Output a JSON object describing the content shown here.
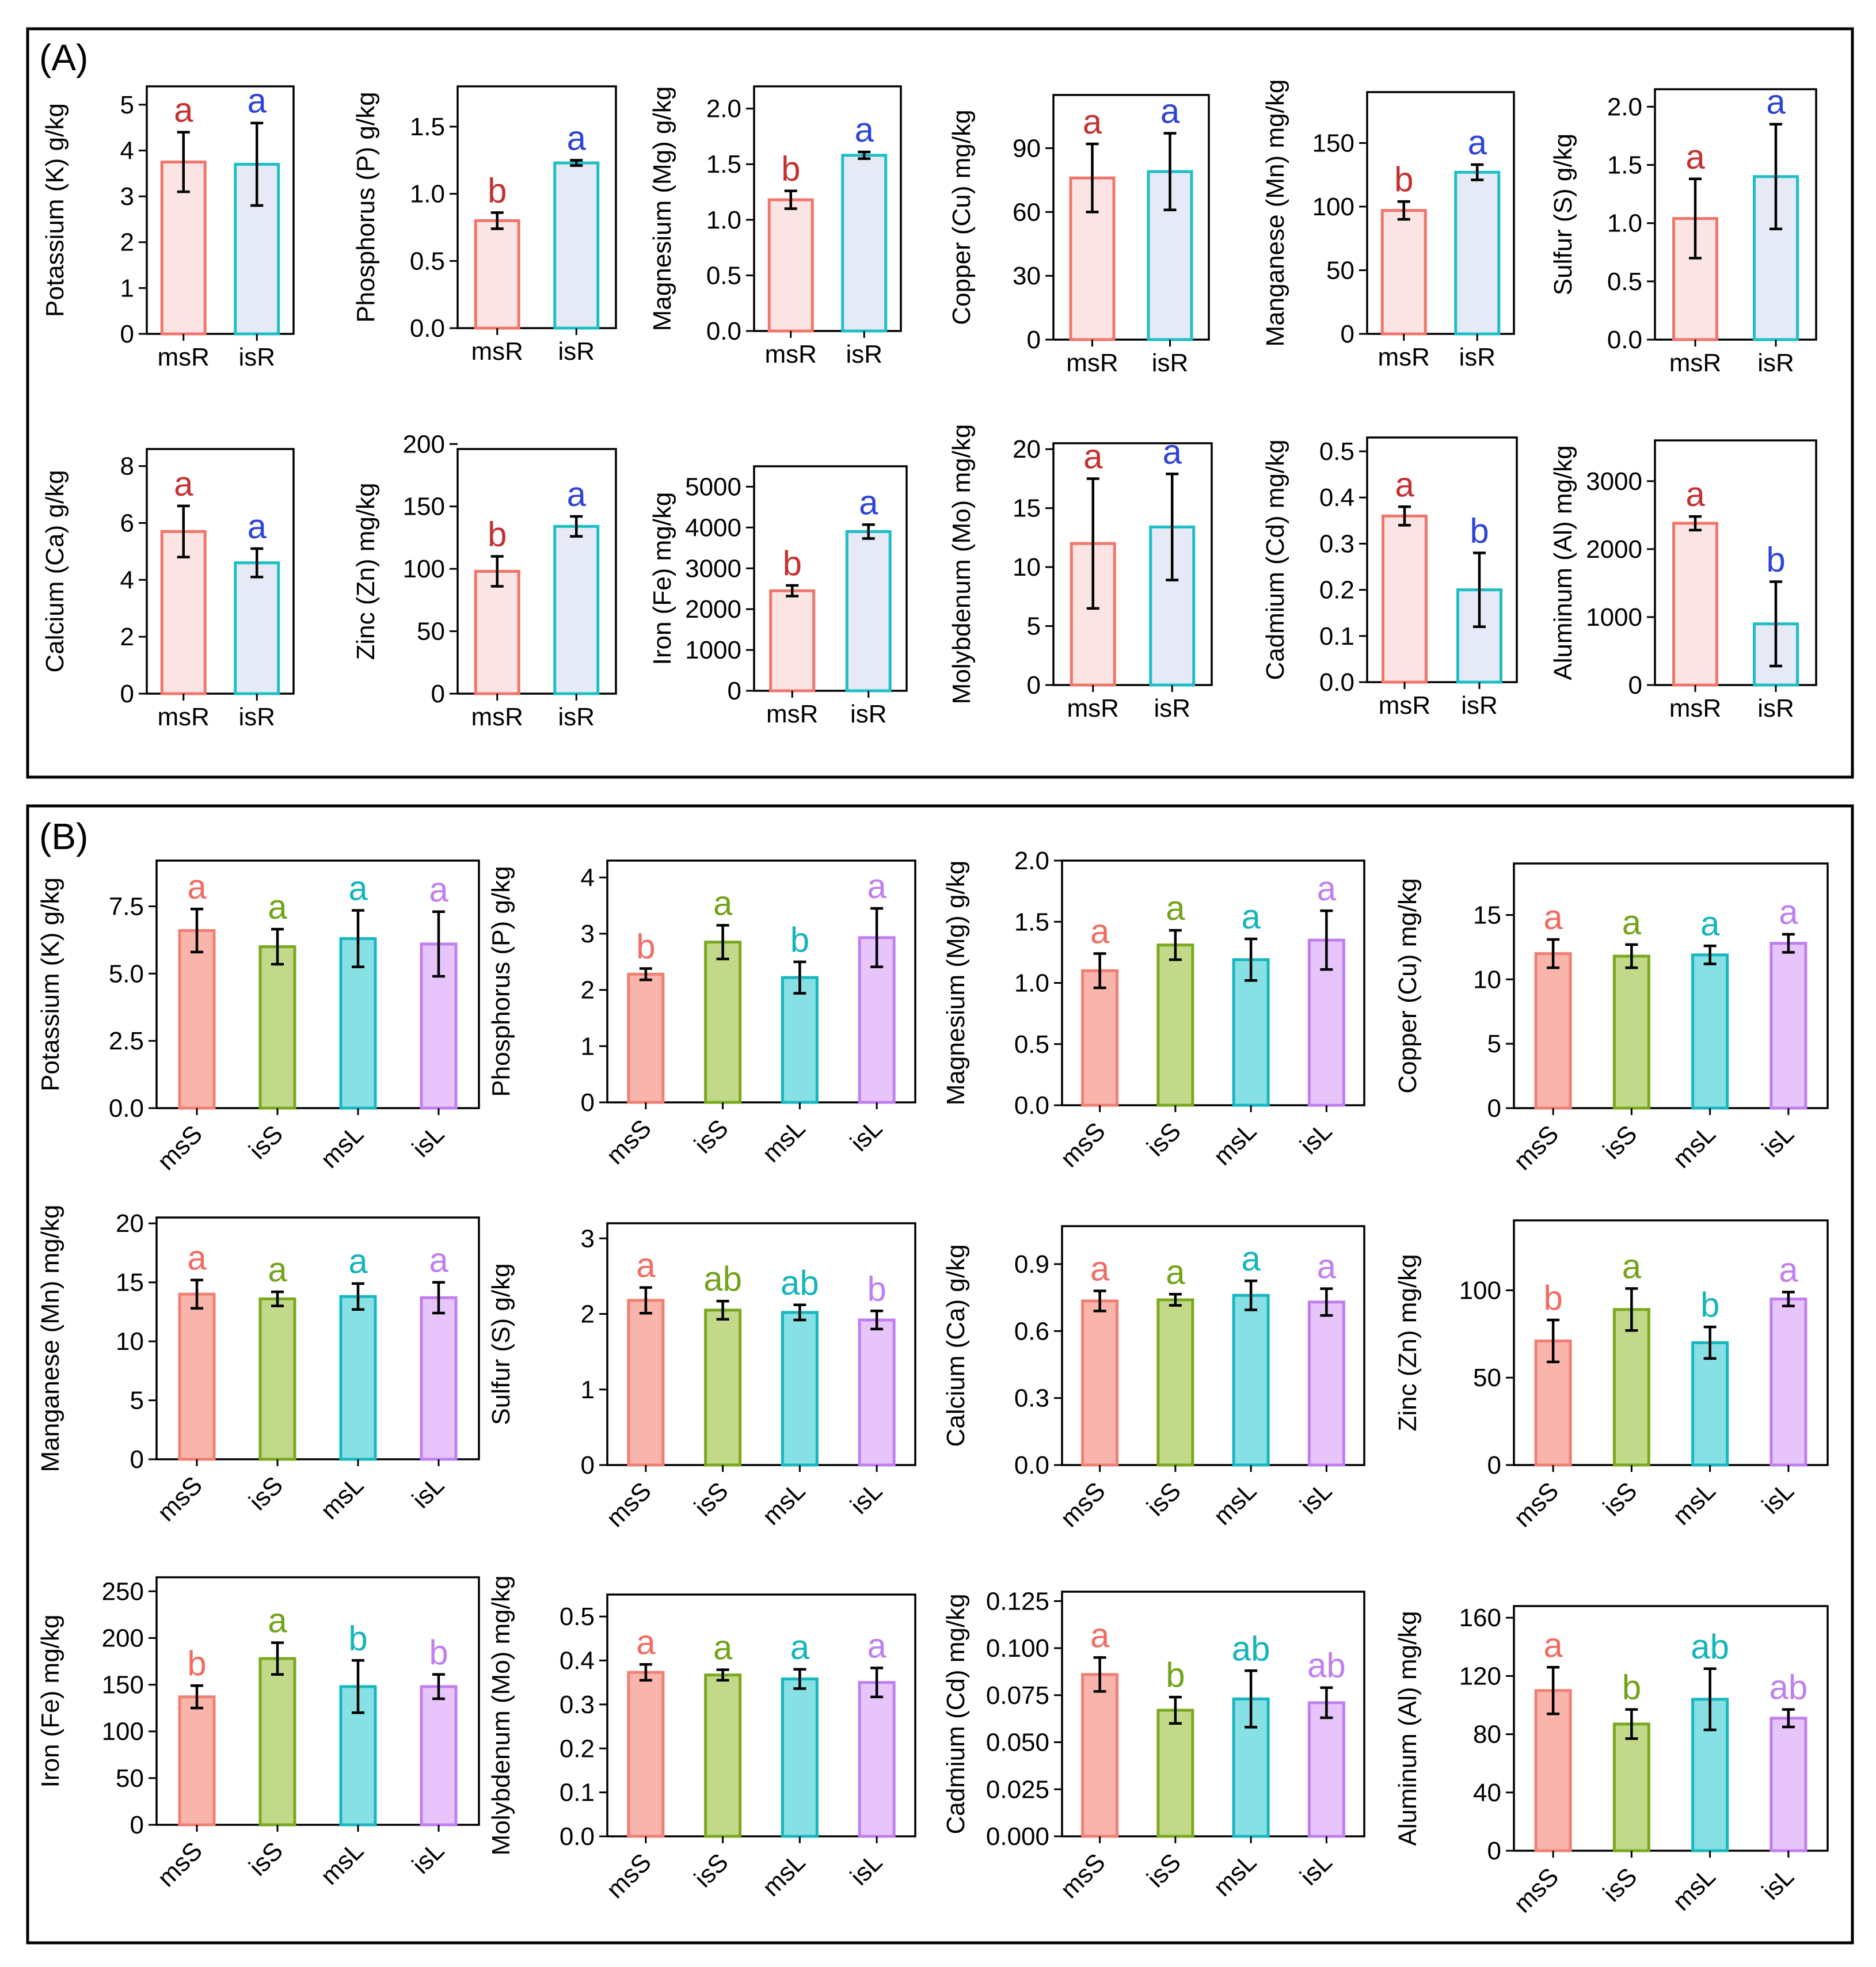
{
  "panels": [
    {
      "label": "(A)"
    },
    {
      "label": "(B)"
    }
  ],
  "colors": {
    "msR": {
      "stroke": "#f0756b",
      "fill": "#fbe5e4",
      "letter": "#c53030"
    },
    "isR": {
      "stroke": "#1dbfc4",
      "fill": "#e6e9f6",
      "letter": "#2e44d6"
    },
    "msS": {
      "stroke": "#f07f74",
      "fill": "#f9b4ac",
      "letter": "#f26b63"
    },
    "isS": {
      "stroke": "#7aa81e",
      "fill": "#c3d98a",
      "letter": "#73a31a"
    },
    "msL": {
      "stroke": "#18b7be",
      "fill": "#86e0e4",
      "letter": "#14b4bb"
    },
    "isL": {
      "stroke": "#c07ff0",
      "fill": "#e7c5fb",
      "letter": "#c07ff0"
    }
  },
  "chart_data": [
    {
      "panel": "A",
      "type": "bar",
      "ylabel": "Potassium (K) g/kg",
      "categories": [
        "msR",
        "isR"
      ],
      "values": [
        3.75,
        3.7
      ],
      "errors": [
        0.65,
        0.9
      ],
      "letters": [
        "a",
        "a"
      ],
      "ylim": [
        0,
        5.4
      ],
      "yticks": [
        "0",
        "1",
        "2",
        "3",
        "4",
        "5"
      ]
    },
    {
      "panel": "A",
      "type": "bar",
      "ylabel": "Phosphorus (P) g/kg",
      "categories": [
        "msR",
        "isR"
      ],
      "values": [
        0.8,
        1.23
      ],
      "errors": [
        0.06,
        0.02
      ],
      "letters": [
        "b",
        "a"
      ],
      "ylim": [
        0,
        1.8
      ],
      "yticks": [
        "0.0",
        "0.5",
        "1.0",
        "1.5"
      ]
    },
    {
      "panel": "A",
      "type": "bar",
      "ylabel": "Magnesium (Mg) g/kg",
      "categories": [
        "msR",
        "isR"
      ],
      "values": [
        1.18,
        1.58
      ],
      "errors": [
        0.08,
        0.03
      ],
      "letters": [
        "b",
        "a"
      ],
      "ylim": [
        0,
        2.2
      ],
      "yticks": [
        "0.0",
        "0.5",
        "1.0",
        "1.5",
        "2.0"
      ]
    },
    {
      "panel": "A",
      "type": "bar",
      "ylabel": "Copper (Cu) mg/kg",
      "categories": [
        "msR",
        "isR"
      ],
      "values": [
        76,
        79
      ],
      "errors": [
        16,
        18
      ],
      "letters": [
        "a",
        "a"
      ],
      "ylim": [
        0,
        115
      ],
      "yticks": [
        "0",
        "30",
        "60",
        "90"
      ]
    },
    {
      "panel": "A",
      "type": "bar",
      "ylabel": "Manganese (Mn) mg/kg",
      "categories": [
        "msR",
        "isR"
      ],
      "values": [
        97,
        127
      ],
      "errors": [
        7,
        6
      ],
      "letters": [
        "b",
        "a"
      ],
      "ylim": [
        0,
        190
      ],
      "yticks": [
        "0",
        "50",
        "100",
        "150"
      ]
    },
    {
      "panel": "A",
      "type": "bar",
      "ylabel": "Sulfur (S) g/kg",
      "categories": [
        "msR",
        "isR"
      ],
      "values": [
        1.04,
        1.4
      ],
      "errors": [
        0.34,
        0.45
      ],
      "letters": [
        "a",
        "a"
      ],
      "ylim": [
        0,
        2.15
      ],
      "yticks": [
        "0.0",
        "0.5",
        "1.0",
        "1.5",
        "2.0"
      ]
    },
    {
      "panel": "A",
      "type": "bar",
      "ylabel": "Calcium (Ca) g/kg",
      "categories": [
        "msR",
        "isR"
      ],
      "values": [
        5.7,
        4.6
      ],
      "errors": [
        0.9,
        0.5
      ],
      "letters": [
        "a",
        "a"
      ],
      "ylim": [
        0,
        8.6
      ],
      "yticks": [
        "0",
        "2",
        "4",
        "6",
        "8"
      ]
    },
    {
      "panel": "A",
      "type": "bar",
      "ylabel": "Zinc (Zn) mg/kg",
      "categories": [
        "msR",
        "isR"
      ],
      "values": [
        98,
        134
      ],
      "errors": [
        12,
        8
      ],
      "letters": [
        "b",
        "a"
      ],
      "ylim": [
        0,
        196
      ],
      "yticks": [
        "0",
        "50",
        "100",
        "150",
        "200"
      ]
    },
    {
      "panel": "A",
      "type": "bar",
      "ylabel": "Iron (Fe) mg/kg",
      "categories": [
        "msR",
        "isR"
      ],
      "values": [
        2450,
        3900
      ],
      "errors": [
        130,
        170
      ],
      "letters": [
        "b",
        "a"
      ],
      "ylim": [
        0,
        5500
      ],
      "yticks": [
        "0",
        "1000",
        "2000",
        "3000",
        "4000",
        "5000"
      ]
    },
    {
      "panel": "A",
      "type": "bar",
      "ylabel": "Molybdenum (Mo) mg/kg",
      "categories": [
        "msR",
        "isR"
      ],
      "values": [
        12,
        13.4
      ],
      "errors": [
        5.5,
        4.5
      ],
      "letters": [
        "a",
        "a"
      ],
      "ylim": [
        0,
        20.5
      ],
      "yticks": [
        "0",
        "5",
        "10",
        "15",
        "20"
      ]
    },
    {
      "panel": "A",
      "type": "bar",
      "ylabel": "Cadmium (Cd) mg/kg",
      "categories": [
        "msR",
        "isR"
      ],
      "values": [
        0.36,
        0.2
      ],
      "errors": [
        0.02,
        0.08
      ],
      "letters": [
        "a",
        "b"
      ],
      "ylim": [
        0,
        0.53
      ],
      "yticks": [
        "0.0",
        "0.1",
        "0.2",
        "0.3",
        "0.4",
        "0.5"
      ]
    },
    {
      "panel": "A",
      "type": "bar",
      "ylabel": "Aluminum (Al) mg/kg",
      "categories": [
        "msR",
        "isR"
      ],
      "values": [
        2380,
        900
      ],
      "errors": [
        100,
        620
      ],
      "letters": [
        "a",
        "b"
      ],
      "ylim": [
        0,
        3600
      ],
      "yticks": [
        "0",
        "1000",
        "2000",
        "3000"
      ]
    },
    {
      "panel": "B",
      "type": "bar",
      "ylabel": "Potassium (K) g/kg",
      "categories": [
        "msS",
        "isS",
        "msL",
        "isL"
      ],
      "values": [
        6.6,
        6.0,
        6.3,
        6.1
      ],
      "errors": [
        0.8,
        0.65,
        1.05,
        1.2
      ],
      "letters": [
        "a",
        "a",
        "a",
        "a"
      ],
      "ylim": [
        0,
        9.2
      ],
      "yticks": [
        "0.0",
        "2.5",
        "5.0",
        "7.5"
      ]
    },
    {
      "panel": "B",
      "type": "bar",
      "ylabel": "Phosphorus (P) g/kg",
      "categories": [
        "msS",
        "isS",
        "msL",
        "isL"
      ],
      "values": [
        2.28,
        2.85,
        2.22,
        2.93
      ],
      "errors": [
        0.1,
        0.3,
        0.28,
        0.52
      ],
      "letters": [
        "b",
        "a",
        "b",
        "a"
      ],
      "ylim": [
        0,
        4.3
      ],
      "yticks": [
        "0",
        "1",
        "2",
        "3",
        "4"
      ]
    },
    {
      "panel": "B",
      "type": "bar",
      "ylabel": "Magnesium (Mg) g/kg",
      "categories": [
        "msS",
        "isS",
        "msL",
        "isL"
      ],
      "values": [
        1.1,
        1.31,
        1.19,
        1.35
      ],
      "errors": [
        0.14,
        0.12,
        0.17,
        0.24
      ],
      "letters": [
        "a",
        "a",
        "a",
        "a"
      ],
      "ylim": [
        0,
        2.0
      ],
      "yticks": [
        "0.0",
        "0.5",
        "1.0",
        "1.5",
        "2.0"
      ]
    },
    {
      "panel": "B",
      "type": "bar",
      "ylabel": "Copper (Cu) mg/kg",
      "categories": [
        "msS",
        "isS",
        "msL",
        "isL"
      ],
      "values": [
        12.0,
        11.8,
        11.9,
        12.8
      ],
      "errors": [
        1.1,
        0.9,
        0.7,
        0.7
      ],
      "letters": [
        "a",
        "a",
        "a",
        "a"
      ],
      "ylim": [
        0,
        19
      ],
      "yticks": [
        "0",
        "5",
        "10",
        "15"
      ]
    },
    {
      "panel": "B",
      "type": "bar",
      "ylabel": "Manganese (Mn) mg/kg",
      "categories": [
        "msS",
        "isS",
        "msL",
        "isL"
      ],
      "values": [
        14.0,
        13.6,
        13.8,
        13.7
      ],
      "errors": [
        1.2,
        0.6,
        1.1,
        1.3
      ],
      "letters": [
        "a",
        "a",
        "a",
        "a"
      ],
      "ylim": [
        0,
        20.5
      ],
      "yticks": [
        "0",
        "5",
        "10",
        "15",
        "20"
      ]
    },
    {
      "panel": "B",
      "type": "bar",
      "ylabel": "Sulfur (S) g/kg",
      "categories": [
        "msS",
        "isS",
        "msL",
        "isL"
      ],
      "values": [
        2.18,
        2.05,
        2.02,
        1.92
      ],
      "errors": [
        0.17,
        0.12,
        0.1,
        0.12
      ],
      "letters": [
        "a",
        "ab",
        "ab",
        "b"
      ],
      "ylim": [
        0,
        3.2
      ],
      "yticks": [
        "0",
        "1",
        "2",
        "3"
      ]
    },
    {
      "panel": "B",
      "type": "bar",
      "ylabel": "Calcium (Ca) g/kg",
      "categories": [
        "msS",
        "isS",
        "msL",
        "isL"
      ],
      "values": [
        0.735,
        0.74,
        0.76,
        0.73
      ],
      "errors": [
        0.045,
        0.025,
        0.065,
        0.06
      ],
      "letters": [
        "a",
        "a",
        "a",
        "a"
      ],
      "ylim": [
        0,
        1.07
      ],
      "yticks": [
        "0.0",
        "0.3",
        "0.6",
        "0.9"
      ]
    },
    {
      "panel": "B",
      "type": "bar",
      "ylabel": "Zinc (Zn) mg/kg",
      "categories": [
        "msS",
        "isS",
        "msL",
        "isL"
      ],
      "values": [
        71,
        89,
        70,
        95
      ],
      "errors": [
        12,
        12,
        9,
        4
      ],
      "letters": [
        "b",
        "a",
        "b",
        "a"
      ],
      "ylim": [
        0,
        140
      ],
      "yticks": [
        "0",
        "50",
        "100"
      ]
    },
    {
      "panel": "B",
      "type": "bar",
      "ylabel": "Iron (Fe) mg/kg",
      "categories": [
        "msS",
        "isS",
        "msL",
        "isL"
      ],
      "values": [
        137,
        178,
        148,
        148
      ],
      "errors": [
        12,
        17,
        28,
        13
      ],
      "letters": [
        "b",
        "a",
        "b",
        "b"
      ],
      "ylim": [
        0,
        265
      ],
      "yticks": [
        "0",
        "50",
        "100",
        "150",
        "200",
        "250"
      ]
    },
    {
      "panel": "B",
      "type": "bar",
      "ylabel": "Molybdenum (Mo) mg/kg",
      "categories": [
        "msS",
        "isS",
        "msL",
        "isL"
      ],
      "values": [
        0.373,
        0.367,
        0.358,
        0.35
      ],
      "errors": [
        0.018,
        0.012,
        0.022,
        0.033
      ],
      "letters": [
        "a",
        "a",
        "a",
        "a"
      ],
      "ylim": [
        0,
        0.55
      ],
      "yticks": [
        "0.0",
        "0.1",
        "0.2",
        "0.3",
        "0.4",
        "0.5"
      ]
    },
    {
      "panel": "B",
      "type": "bar",
      "ylabel": "Cadmium (Cd) mg/kg",
      "categories": [
        "msS",
        "isS",
        "msL",
        "isL"
      ],
      "values": [
        0.086,
        0.067,
        0.073,
        0.071
      ],
      "errors": [
        0.009,
        0.007,
        0.015,
        0.008
      ],
      "letters": [
        "a",
        "b",
        "ab",
        "ab"
      ],
      "ylim": [
        0,
        0.13
      ],
      "yticks": [
        "0.000",
        "0.025",
        "0.050",
        "0.075",
        "0.100",
        "0.125"
      ]
    },
    {
      "panel": "B",
      "type": "bar",
      "ylabel": "Aluminum (Al) mg/kg",
      "categories": [
        "msS",
        "isS",
        "msL",
        "isL"
      ],
      "values": [
        110,
        87,
        104,
        91
      ],
      "errors": [
        16,
        10,
        21,
        6
      ],
      "letters": [
        "a",
        "b",
        "ab",
        "ab"
      ],
      "ylim": [
        0,
        168
      ],
      "yticks": [
        "0",
        "40",
        "80",
        "120",
        "160"
      ]
    }
  ]
}
